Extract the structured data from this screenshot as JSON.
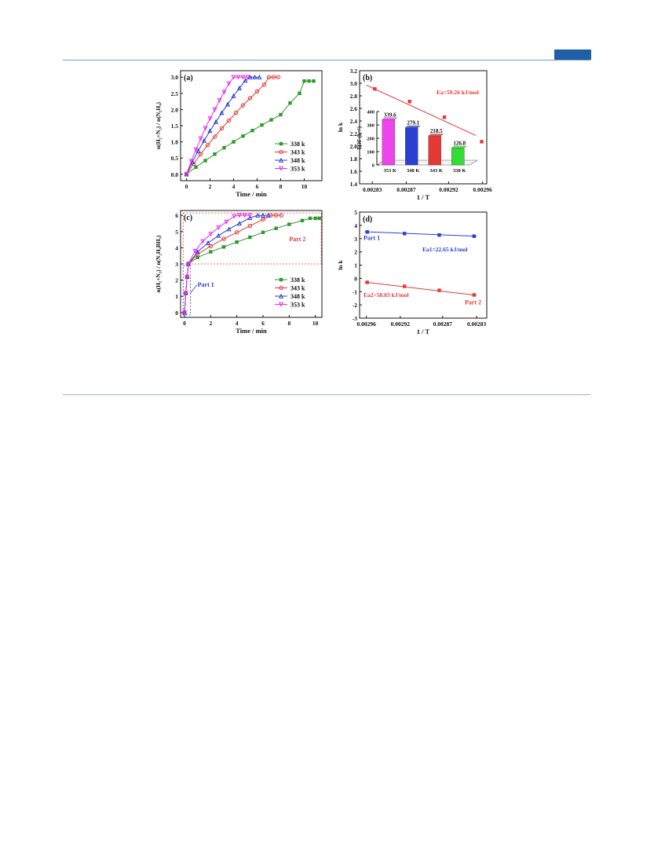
{
  "page": {
    "header_color": "#1f5fa6"
  },
  "chart_data": [
    {
      "panel": "(a)",
      "type": "line",
      "xlabel": "Time / min",
      "ylabel": "n(H₂+N₂) / n(N₂H₄)",
      "xlim": [
        -0.5,
        11.5
      ],
      "ylim": [
        -0.2,
        3.2
      ],
      "xticks": [
        0,
        2,
        4,
        6,
        8,
        10
      ],
      "yticks": [
        0.0,
        0.5,
        1.0,
        1.5,
        2.0,
        2.5,
        3.0
      ],
      "ytick_labels": [
        "0.0",
        "0.5",
        "1.0",
        "1.5",
        "2.0",
        "2.5",
        "3.0"
      ],
      "legend_position": "lower-right",
      "series": [
        {
          "name": "338 k",
          "color": "#2e9a2e",
          "marker": "square",
          "x": [
            0,
            0.8,
            1.6,
            2.4,
            3.2,
            4.0,
            4.8,
            5.6,
            6.4,
            7.2,
            8.0,
            8.8,
            9.6,
            10.0,
            10.4,
            10.8
          ],
          "y": [
            0,
            0.22,
            0.42,
            0.62,
            0.82,
            1.0,
            1.18,
            1.35,
            1.52,
            1.68,
            1.84,
            2.2,
            2.5,
            2.88,
            2.88,
            2.88
          ]
        },
        {
          "name": "343 k",
          "color": "#e53935",
          "marker": "circle",
          "x": [
            0,
            0.6,
            1.2,
            1.8,
            2.4,
            3.0,
            3.6,
            4.2,
            4.8,
            5.4,
            6.0,
            6.6,
            7.0,
            7.4,
            7.8
          ],
          "y": [
            0,
            0.32,
            0.62,
            0.9,
            1.16,
            1.42,
            1.66,
            1.9,
            2.13,
            2.35,
            2.56,
            2.77,
            3.0,
            3.0,
            3.0
          ]
        },
        {
          "name": "348 k",
          "color": "#2b3fd1",
          "marker": "triangle-up",
          "x": [
            0,
            0.5,
            1.0,
            1.5,
            2.0,
            2.5,
            3.0,
            3.5,
            4.0,
            4.5,
            5.0,
            5.4,
            5.8,
            6.2
          ],
          "y": [
            0,
            0.38,
            0.72,
            1.04,
            1.34,
            1.62,
            1.9,
            2.16,
            2.42,
            2.66,
            2.9,
            3.0,
            3.0,
            3.0
          ]
        },
        {
          "name": "353 k",
          "color": "#e633e6",
          "marker": "triangle-down",
          "x": [
            0,
            0.4,
            0.8,
            1.2,
            1.6,
            2.0,
            2.4,
            2.8,
            3.2,
            3.6,
            4.0,
            4.4,
            4.8,
            5.2
          ],
          "y": [
            0,
            0.4,
            0.76,
            1.1,
            1.42,
            1.72,
            2.0,
            2.28,
            2.54,
            2.8,
            3.0,
            3.0,
            3.0,
            3.0
          ]
        }
      ]
    },
    {
      "panel": "(b)",
      "type": "scatter",
      "xlabel": "1 / T",
      "ylabel": "ln k",
      "xlim": [
        0.002815,
        0.002965
      ],
      "ylim": [
        1.4,
        3.2
      ],
      "xticks": [
        0.00283,
        0.00287,
        0.00292,
        0.00296
      ],
      "xtick_labels": [
        "0.00283",
        "0.00287",
        "0.00292",
        "0.00296"
      ],
      "yticks": [
        1.4,
        1.6,
        1.8,
        2.0,
        2.2,
        2.4,
        2.6,
        2.8,
        3.0,
        3.2
      ],
      "ytick_labels": [
        "1.4",
        "1.6",
        "1.8",
        "2.0",
        "2.2",
        "2.4",
        "2.6",
        "2.8",
        "3.0",
        "3.2"
      ],
      "annotation": "Ea=59.26 kJ/mol",
      "series": [
        {
          "color": "#e53935",
          "marker": "square",
          "x": [
            0.002833,
            0.002874,
            0.002915,
            0.002959
          ],
          "y": [
            2.91,
            2.71,
            2.46,
            2.07
          ],
          "fit": [
            [
              0.002823,
              2.97
            ],
            [
              0.002952,
              2.17
            ]
          ]
        }
      ],
      "inset": {
        "type": "bar",
        "ylabel": "TOF (h⁻¹)",
        "ylim": [
          0,
          400
        ],
        "yticks": [
          0,
          100,
          200,
          300,
          400
        ],
        "categories": [
          "353 K",
          "348 K",
          "343 K",
          "338 K"
        ],
        "values": [
          339.6,
          279.1,
          218.5,
          126.8
        ],
        "value_labels": [
          "339.6",
          "279.1",
          "218.5",
          "126.8"
        ],
        "colors": [
          "#ee44ee",
          "#2b3fd1",
          "#e53935",
          "#33dd33"
        ]
      }
    },
    {
      "panel": "(c)",
      "type": "line",
      "xlabel": "Time / min",
      "ylabel": "n(H₂+N₂) / n(N₂H₄BH₃)",
      "xlim": [
        -0.3,
        10.5
      ],
      "ylim": [
        -0.3,
        6.3
      ],
      "xticks": [
        0,
        2,
        4,
        6,
        8,
        10
      ],
      "yticks": [
        0,
        1,
        2,
        3,
        4,
        5,
        6
      ],
      "legend_position": "lower-right",
      "region_labels": [
        "Part 1",
        "Part 2"
      ],
      "series": [
        {
          "name": "338 k",
          "color": "#2e9a2e",
          "marker": "square",
          "x": [
            0,
            0.1,
            0.2,
            0.3,
            1.0,
            2.0,
            3.0,
            4.0,
            5.0,
            6.0,
            7.0,
            8.0,
            9.0,
            9.6,
            10.0,
            10.3
          ],
          "y": [
            0,
            1.2,
            2.2,
            3.0,
            3.4,
            3.75,
            4.05,
            4.35,
            4.65,
            4.95,
            5.2,
            5.45,
            5.68,
            5.82,
            5.82,
            5.82
          ]
        },
        {
          "name": "343 k",
          "color": "#e53935",
          "marker": "circle",
          "x": [
            0,
            0.1,
            0.2,
            0.3,
            1.0,
            2.0,
            3.0,
            4.0,
            5.0,
            6.0,
            6.6,
            7.0,
            7.4
          ],
          "y": [
            0,
            1.2,
            2.2,
            3.0,
            3.6,
            4.1,
            4.55,
            4.95,
            5.35,
            5.75,
            6.0,
            6.0,
            6.0
          ]
        },
        {
          "name": "348 k",
          "color": "#2b3fd1",
          "marker": "triangle-up",
          "x": [
            0,
            0.1,
            0.2,
            0.3,
            1.0,
            1.8,
            2.6,
            3.4,
            4.2,
            5.0,
            5.6,
            6.0,
            6.4
          ],
          "y": [
            0,
            1.2,
            2.2,
            3.0,
            3.75,
            4.3,
            4.75,
            5.15,
            5.5,
            5.85,
            6.0,
            6.0,
            6.0
          ]
        },
        {
          "name": "353 k",
          "color": "#e633e6",
          "marker": "triangle-down",
          "x": [
            0,
            0.1,
            0.2,
            0.3,
            0.8,
            1.4,
            2.0,
            2.6,
            3.2,
            3.8,
            4.2,
            4.6,
            5.0
          ],
          "y": [
            0,
            1.2,
            2.2,
            3.0,
            3.8,
            4.4,
            4.85,
            5.25,
            5.6,
            5.95,
            6.0,
            6.0,
            6.0
          ]
        }
      ]
    },
    {
      "panel": "(d)",
      "type": "scatter",
      "xlabel": "1 / T",
      "ylabel": "ln k",
      "xlim": [
        0.002968,
        0.002818
      ],
      "ylim": [
        -3,
        5
      ],
      "xticks": [
        0.00296,
        0.00292,
        0.00287,
        0.00283
      ],
      "xtick_labels": [
        "0.00296",
        "0.00292",
        "0.00287",
        "0.00283"
      ],
      "yticks": [
        -3,
        -2,
        -1,
        0,
        1,
        2,
        3,
        4,
        5
      ],
      "series": [
        {
          "name": "Part 1",
          "color": "#2b3fd1",
          "marker": "square",
          "x": [
            0.002959,
            0.002915,
            0.002874,
            0.002833
          ],
          "y": [
            3.5,
            3.38,
            3.27,
            3.18
          ],
          "fit": [
            [
              0.002962,
              3.52
            ],
            [
              0.00283,
              3.18
            ]
          ],
          "annotation": "Ea1=22.65 kJ/mol"
        },
        {
          "name": "Part 2",
          "color": "#e53935",
          "marker": "square",
          "x": [
            0.002959,
            0.002915,
            0.002874,
            0.002833
          ],
          "y": [
            -0.3,
            -0.6,
            -0.9,
            -1.25
          ],
          "fit": [
            [
              0.002962,
              -0.28
            ],
            [
              0.00283,
              -1.28
            ]
          ],
          "annotation": "Ea2=58.03 kJ/mol"
        }
      ]
    }
  ]
}
